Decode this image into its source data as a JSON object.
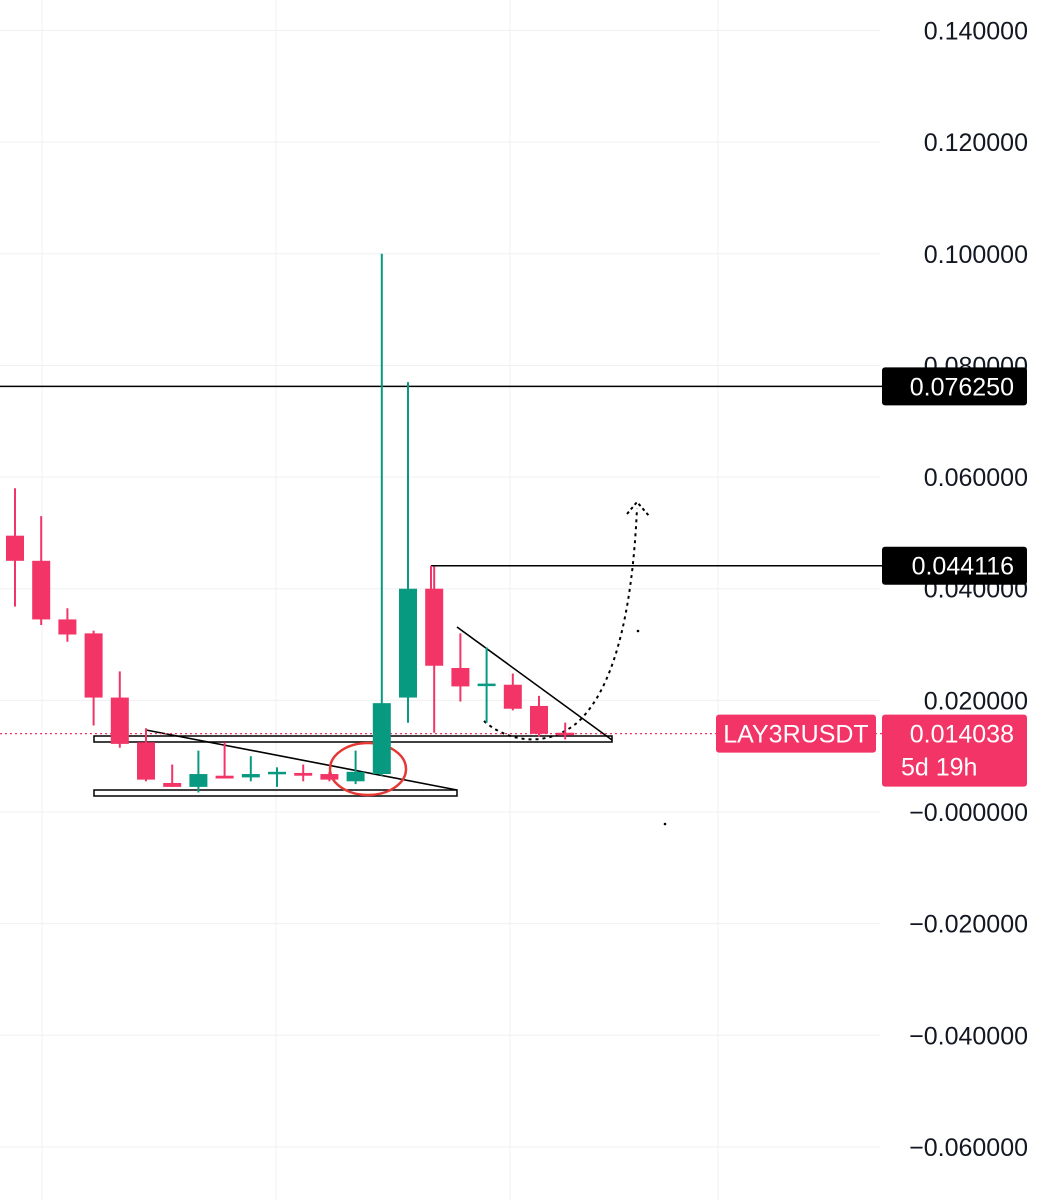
{
  "chart_data": {
    "type": "candlestick",
    "symbol": "LAY3RUSDT",
    "y_axis": {
      "side": "right",
      "range": [
        -0.07,
        0.145
      ],
      "ticks": [
        "0.140000",
        "0.120000",
        "0.100000",
        "0.080000",
        "0.060000",
        "0.040000",
        "0.020000",
        "−0.000000",
        "−0.020000",
        "−0.040000",
        "−0.060000"
      ],
      "tick_values": [
        0.14,
        0.12,
        0.1,
        0.08,
        0.06,
        0.04,
        0.02,
        0.0,
        -0.02,
        -0.04,
        -0.06
      ]
    },
    "grid": true,
    "colors": {
      "up": "#089981",
      "down": "#f23467",
      "line": "#000000",
      "circle": "#e53935",
      "price_tag": "#f23467",
      "level_tag": "#000000"
    },
    "candles": [
      {
        "o": 0.0495,
        "h": 0.058,
        "l": 0.0368,
        "c": 0.045
      },
      {
        "o": 0.045,
        "h": 0.053,
        "l": 0.0335,
        "c": 0.0345
      },
      {
        "o": 0.0345,
        "h": 0.0365,
        "l": 0.0305,
        "c": 0.0318
      },
      {
        "o": 0.032,
        "h": 0.0325,
        "l": 0.0155,
        "c": 0.0205
      },
      {
        "o": 0.0205,
        "h": 0.0252,
        "l": 0.0115,
        "c": 0.0122
      },
      {
        "o": 0.0125,
        "h": 0.015,
        "l": 0.0055,
        "c": 0.0058
      },
      {
        "o": 0.0052,
        "h": 0.0085,
        "l": 0.0045,
        "c": 0.0045
      },
      {
        "o": 0.0045,
        "h": 0.011,
        "l": 0.0035,
        "c": 0.0068
      },
      {
        "o": 0.0065,
        "h": 0.0125,
        "l": 0.006,
        "c": 0.006
      },
      {
        "o": 0.0062,
        "h": 0.01,
        "l": 0.0055,
        "c": 0.0068
      },
      {
        "o": 0.007,
        "h": 0.008,
        "l": 0.0045,
        "c": 0.0072
      },
      {
        "o": 0.007,
        "h": 0.0085,
        "l": 0.0055,
        "c": 0.0065
      },
      {
        "o": 0.0068,
        "h": 0.0072,
        "l": 0.0055,
        "c": 0.0058
      },
      {
        "o": 0.0055,
        "h": 0.011,
        "l": 0.005,
        "c": 0.0072
      },
      {
        "o": 0.0068,
        "h": 0.1,
        "l": 0.0065,
        "c": 0.0195
      },
      {
        "o": 0.0205,
        "h": 0.077,
        "l": 0.016,
        "c": 0.04
      },
      {
        "o": 0.04,
        "h": 0.044,
        "l": 0.0142,
        "c": 0.0262
      },
      {
        "o": 0.0258,
        "h": 0.032,
        "l": 0.0198,
        "c": 0.0225
      },
      {
        "o": 0.023,
        "h": 0.0295,
        "l": 0.016,
        "c": 0.023
      },
      {
        "o": 0.0228,
        "h": 0.0248,
        "l": 0.0182,
        "c": 0.0185
      },
      {
        "o": 0.019,
        "h": 0.0208,
        "l": 0.0135,
        "c": 0.014
      },
      {
        "o": 0.0142,
        "h": 0.016,
        "l": 0.013,
        "c": 0.014
      }
    ],
    "horizontal_levels": [
      {
        "label": "0.076250",
        "value": 0.07625
      },
      {
        "label": "0.044116",
        "value": 0.044116
      }
    ],
    "current_price": {
      "symbol": "LAY3RUSDT",
      "label": "0.014038",
      "value": 0.014038,
      "countdown": "5d 19h"
    }
  }
}
